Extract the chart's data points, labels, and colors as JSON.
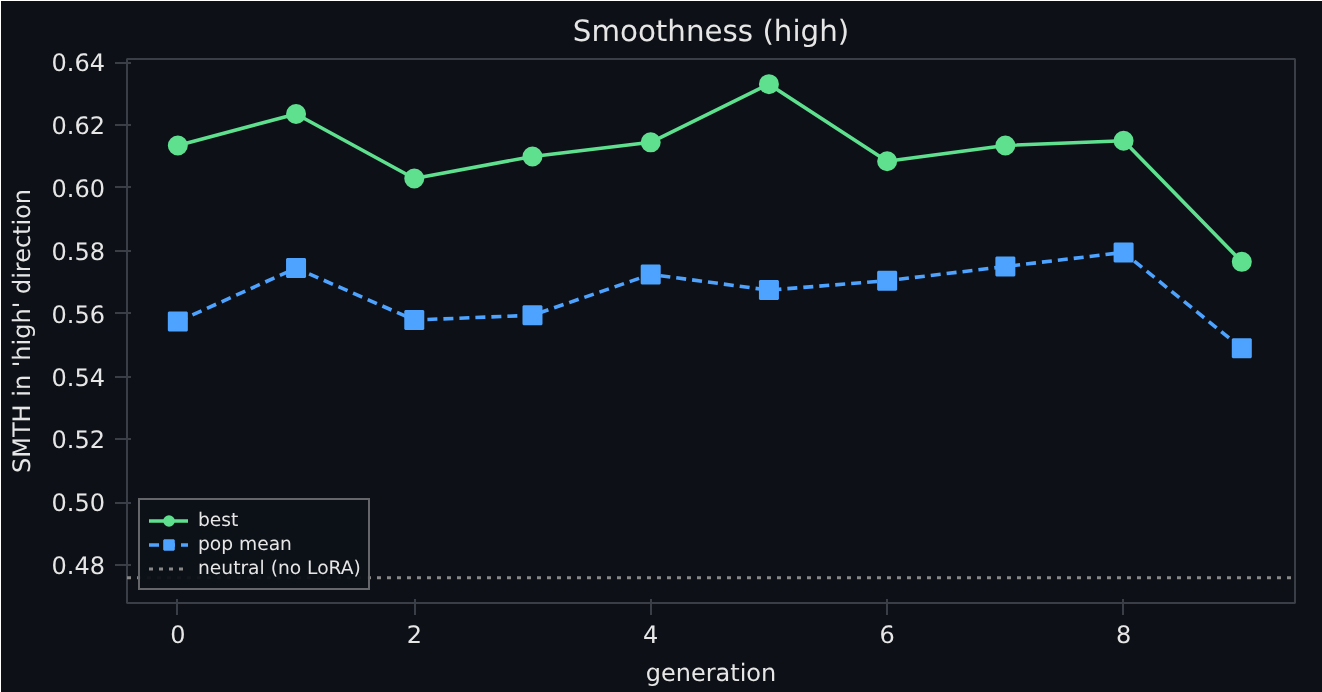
{
  "chart_data": {
    "type": "line",
    "title": "Smoothness (high)",
    "xlabel": "generation",
    "ylabel": "SMTH in 'high' direction",
    "x": [
      0,
      1,
      2,
      3,
      4,
      5,
      6,
      7,
      8,
      9
    ],
    "series": [
      {
        "name": "best",
        "color": "#5ee08f",
        "values": [
          0.6135,
          0.6235,
          0.603,
          0.61,
          0.6145,
          0.633,
          0.6085,
          0.6135,
          0.615,
          0.5765
        ],
        "marker": "circle",
        "line_style": "solid"
      },
      {
        "name": "pop mean",
        "color": "#4da3ff",
        "values": [
          0.5575,
          0.5745,
          0.558,
          0.5595,
          0.5725,
          0.5675,
          0.5705,
          0.575,
          0.5795,
          0.549
        ],
        "marker": "square",
        "line_style": "dashed"
      }
    ],
    "ref_lines": [
      {
        "axis": "y",
        "value": 0.476,
        "label": "neutral (no LoRA)",
        "color": "#888888",
        "line_style": "dotted"
      }
    ],
    "xlim": [
      -0.43,
      9.45
    ],
    "xticks": [
      0,
      2,
      4,
      6,
      8
    ],
    "ylim": [
      0.468,
      0.641
    ],
    "yticks": [
      {
        "value": 0.48,
        "label": "0.48"
      },
      {
        "value": 0.5,
        "label": "0.50"
      },
      {
        "value": 0.52,
        "label": "0.52"
      },
      {
        "value": 0.54,
        "label": "0.54"
      },
      {
        "value": 0.56,
        "label": "0.56"
      },
      {
        "value": 0.58,
        "label": "0.58"
      },
      {
        "value": 0.6,
        "label": "0.60"
      },
      {
        "value": 0.62,
        "label": "0.62"
      },
      {
        "value": 0.64,
        "label": "0.64"
      }
    ],
    "grid": false,
    "legend": "bottom left"
  }
}
